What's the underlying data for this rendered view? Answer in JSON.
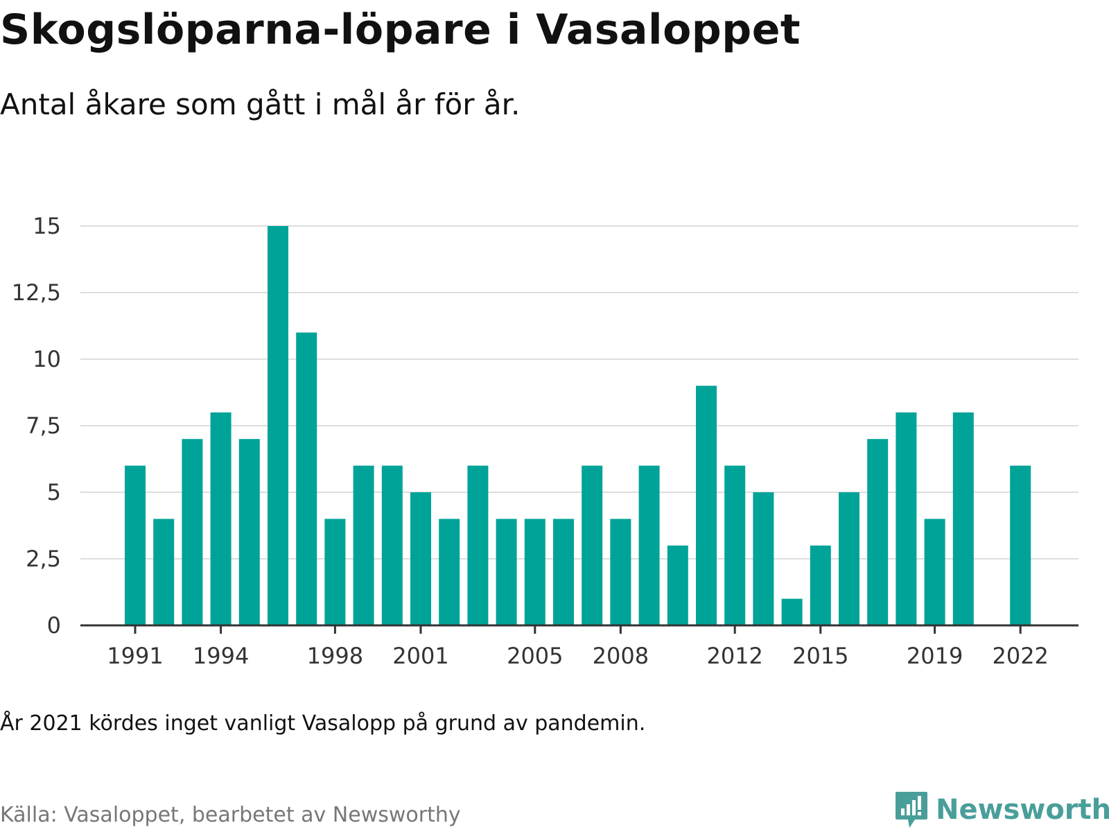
{
  "title": "Skogslöparna-löpare i Vasaloppet",
  "subtitle": "Antal åkare som gått i mål år för år.",
  "note": "År 2021 kördes inget vanligt Vasalopp på grund av pandemin.",
  "source": "Källa: Vasaloppet, bearbetet av Newsworthy",
  "brand": {
    "name": "Newsworthy",
    "color": "#4a9e9a"
  },
  "chart_data": {
    "type": "bar",
    "bar_color": "#00a398",
    "categories": [
      "1991",
      "1992",
      "1993",
      "1994",
      "1995",
      "1996",
      "1997",
      "1998",
      "1999",
      "2000",
      "2001",
      "2002",
      "2003",
      "2004",
      "2005",
      "2006",
      "2007",
      "2008",
      "2009",
      "2010",
      "2011",
      "2012",
      "2013",
      "2014",
      "2015",
      "2016",
      "2017",
      "2018",
      "2019",
      "2020",
      "2021",
      "2022"
    ],
    "values": [
      6,
      4,
      7,
      8,
      7,
      15,
      11,
      4,
      6,
      6,
      5,
      4,
      6,
      4,
      4,
      4,
      6,
      4,
      6,
      3,
      9,
      6,
      5,
      1,
      3,
      5,
      7,
      8,
      4,
      8,
      null,
      6
    ],
    "x_tick_labels": [
      "1991",
      "1994",
      "1998",
      "2001",
      "2005",
      "2008",
      "2012",
      "2015",
      "2019",
      "2022"
    ],
    "y_ticks": [
      0,
      2.5,
      5,
      7.5,
      10,
      12.5,
      15
    ],
    "y_tick_labels": [
      "0",
      "2,5",
      "5",
      "7,5",
      "10",
      "12,5",
      "15"
    ],
    "ylim": [
      0,
      15
    ],
    "xlabel": "",
    "ylabel": "",
    "grid": true
  }
}
